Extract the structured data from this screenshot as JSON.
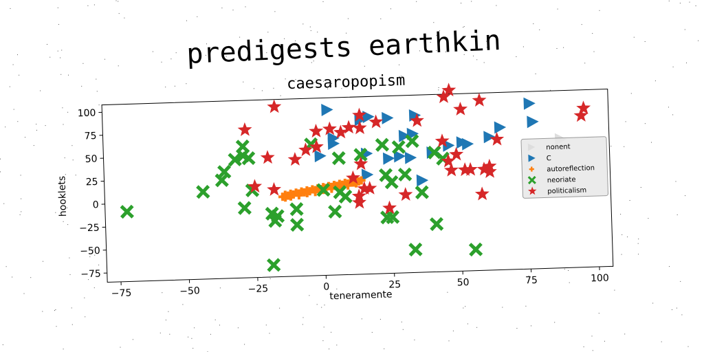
{
  "title": "predigests earthkin",
  "chart_data": {
    "type": "scatter",
    "title": "caesaropopism",
    "xlabel": "teneramente",
    "ylabel": "hooklets",
    "xlim": [
      -80,
      105
    ],
    "ylim": [
      -85,
      108
    ],
    "xticks": [
      -75,
      -50,
      -25,
      0,
      25,
      50,
      75,
      100
    ],
    "yticks": [
      -75,
      -50,
      -25,
      0,
      25,
      50,
      75,
      100
    ],
    "xtick_labels": [
      "−75",
      "−50",
      "−25",
      "0",
      "25",
      "50",
      "75",
      "100"
    ],
    "ytick_labels": [
      "−75",
      "−50",
      "−25",
      "0",
      "25",
      "50",
      "75",
      "100"
    ],
    "grid": false,
    "legend_position": "center-right",
    "series": [
      {
        "name": "nonent",
        "marker": "triangle-right",
        "color": "#dddddd",
        "points": [
          [
            87,
            55
          ]
        ]
      },
      {
        "name": "C",
        "marker": "triangle-right",
        "color": "#1f77b4",
        "points": [
          [
            2,
            95
          ],
          [
            14,
            83
          ],
          [
            17,
            86
          ],
          [
            24,
            84
          ],
          [
            34,
            86
          ],
          [
            33,
            66
          ],
          [
            30,
            64
          ],
          [
            4,
            64
          ],
          [
            4,
            58
          ],
          [
            -1,
            45
          ],
          [
            16,
            46
          ],
          [
            24,
            40
          ],
          [
            28,
            42
          ],
          [
            32,
            40
          ],
          [
            40,
            45
          ],
          [
            46,
            52
          ],
          [
            51,
            55
          ],
          [
            53,
            53
          ],
          [
            61,
            60
          ],
          [
            65,
            70
          ],
          [
            76,
            95
          ],
          [
            77,
            75
          ],
          [
            16,
            23
          ],
          [
            36,
            15
          ]
        ]
      },
      {
        "name": "autoreflection",
        "marker": "plus",
        "color": "#ff7f0e",
        "points": [
          [
            -15,
            2
          ],
          [
            -14,
            4
          ],
          [
            -13,
            3
          ],
          [
            -12,
            5
          ],
          [
            -11,
            4
          ],
          [
            -10,
            6
          ],
          [
            -9,
            5
          ],
          [
            -8,
            7
          ],
          [
            -7,
            6
          ],
          [
            -6,
            8
          ],
          [
            -5,
            7
          ],
          [
            -4,
            9
          ],
          [
            -3,
            8
          ],
          [
            -2,
            10
          ],
          [
            -1,
            9
          ],
          [
            0,
            11
          ],
          [
            1,
            10
          ],
          [
            2,
            12
          ],
          [
            3,
            11
          ],
          [
            4,
            13
          ],
          [
            5,
            12
          ],
          [
            6,
            14
          ],
          [
            7,
            13
          ],
          [
            8,
            15
          ],
          [
            9,
            14
          ],
          [
            10,
            16
          ],
          [
            11,
            15
          ],
          [
            12,
            17
          ],
          [
            13,
            16
          ],
          [
            14,
            17
          ],
          [
            -14,
            1
          ],
          [
            -12,
            2
          ],
          [
            -9,
            3
          ],
          [
            -6,
            5
          ],
          [
            -3,
            6
          ],
          [
            0,
            8
          ],
          [
            3,
            9
          ],
          [
            6,
            11
          ],
          [
            9,
            12
          ],
          [
            12,
            14
          ]
        ]
      },
      {
        "name": "neoriate",
        "marker": "x",
        "color": "#2ca02c",
        "points": [
          [
            -72,
            -9
          ],
          [
            -44,
            10
          ],
          [
            -37,
            22
          ],
          [
            -36,
            31
          ],
          [
            -32,
            44
          ],
          [
            -29,
            48
          ],
          [
            -29,
            58
          ],
          [
            -27,
            45
          ],
          [
            -26,
            10
          ],
          [
            -29,
            -9
          ],
          [
            -19,
            -16
          ],
          [
            -18,
            -24
          ],
          [
            -17,
            -19
          ],
          [
            -10,
            -12
          ],
          [
            -10,
            -29
          ],
          [
            -19,
            -72
          ],
          [
            0,
            8
          ],
          [
            -4,
            58
          ],
          [
            6,
            42
          ],
          [
            6,
            5
          ],
          [
            8,
            0
          ],
          [
            4,
            -16
          ],
          [
            14,
            45
          ],
          [
            22,
            55
          ],
          [
            23,
            22
          ],
          [
            25,
            14
          ],
          [
            28,
            52
          ],
          [
            33,
            58
          ],
          [
            23,
            -24
          ],
          [
            25,
            -24
          ],
          [
            36,
            2
          ],
          [
            41,
            45
          ],
          [
            44,
            38
          ],
          [
            41,
            -33
          ],
          [
            33,
            -60
          ],
          [
            55,
            -62
          ],
          [
            30,
            22
          ]
        ]
      },
      {
        "name": "politicalism",
        "marker": "star",
        "color": "#d62728",
        "points": [
          [
            -17,
            100
          ],
          [
            -28,
            76
          ],
          [
            -20,
            45
          ],
          [
            -25,
            14
          ],
          [
            -18,
            10
          ],
          [
            -10,
            42
          ],
          [
            -6,
            52
          ],
          [
            -2,
            55
          ],
          [
            -2,
            72
          ],
          [
            3,
            74
          ],
          [
            7,
            70
          ],
          [
            10,
            75
          ],
          [
            14,
            74
          ],
          [
            14,
            88
          ],
          [
            14,
            35
          ],
          [
            11,
            20
          ],
          [
            13,
            0
          ],
          [
            15,
            8
          ],
          [
            17,
            8
          ],
          [
            20,
            80
          ],
          [
            35,
            80
          ],
          [
            45,
            105
          ],
          [
            47,
            112
          ],
          [
            51,
            91
          ],
          [
            58,
            100
          ],
          [
            44,
            57
          ],
          [
            46,
            35
          ],
          [
            49,
            42
          ],
          [
            52,
            25
          ],
          [
            54,
            25
          ],
          [
            59,
            25
          ],
          [
            61,
            28
          ],
          [
            61,
            22
          ],
          [
            58,
            -2
          ],
          [
            47,
            25
          ],
          [
            64,
            57
          ],
          [
            30,
            0
          ],
          [
            24,
            -14
          ],
          [
            95,
            80
          ],
          [
            96,
            88
          ],
          [
            13,
            -7
          ]
        ]
      }
    ]
  }
}
